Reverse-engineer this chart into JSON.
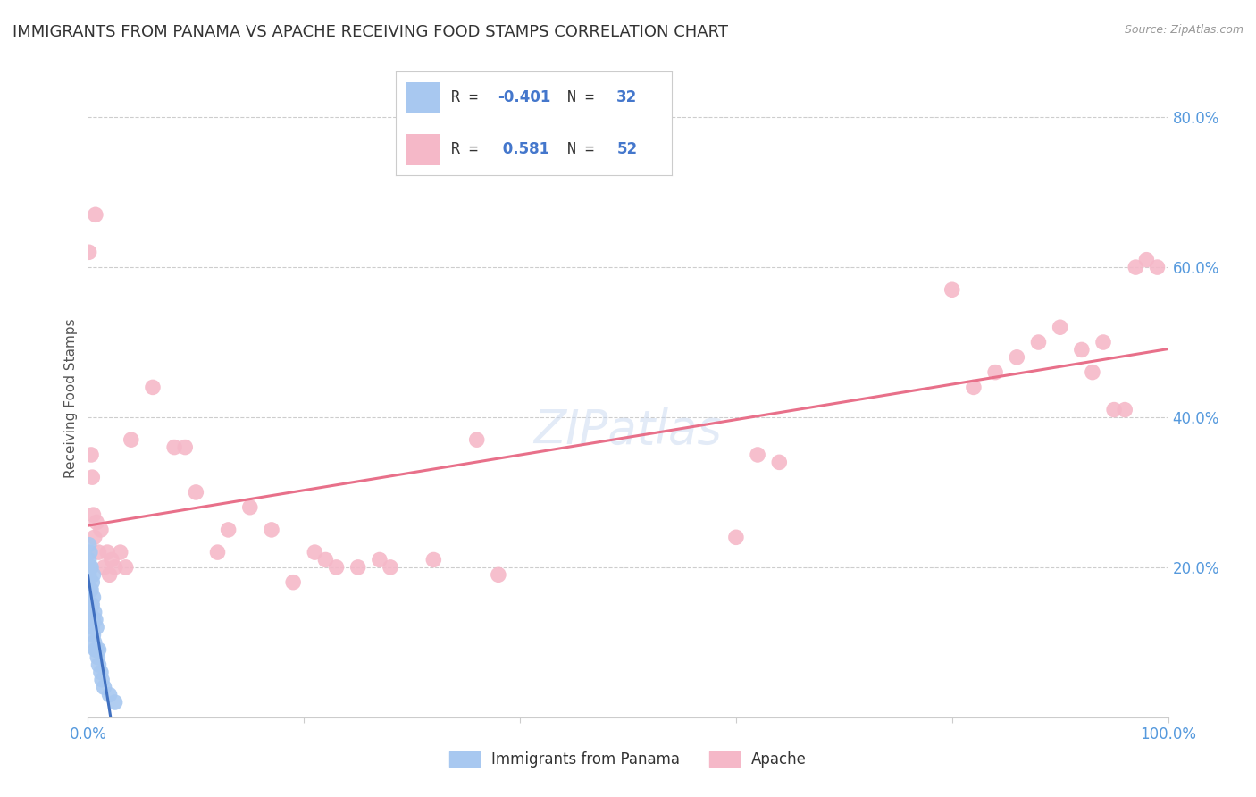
{
  "title": "IMMIGRANTS FROM PANAMA VS APACHE RECEIVING FOOD STAMPS CORRELATION CHART",
  "source": "Source: ZipAtlas.com",
  "ylabel": "Receiving Food Stamps",
  "xlim": [
    0.0,
    1.0
  ],
  "ylim": [
    0.0,
    0.85
  ],
  "xticks": [
    0.0,
    0.2,
    0.4,
    0.6,
    0.8,
    1.0
  ],
  "xticklabels": [
    "0.0%",
    "",
    "",
    "",
    "",
    "100.0%"
  ],
  "yticks": [
    0.2,
    0.4,
    0.6,
    0.8
  ],
  "yticklabels": [
    "20.0%",
    "40.0%",
    "60.0%",
    "80.0%"
  ],
  "blue_R": -0.401,
  "blue_N": 32,
  "pink_R": 0.581,
  "pink_N": 52,
  "blue_color": "#A8C8F0",
  "pink_color": "#F5B8C8",
  "blue_line_color": "#4070C0",
  "pink_line_color": "#E8708A",
  "background_color": "#FFFFFF",
  "grid_color": "#C8C8C8",
  "blue_x": [
    0.001,
    0.001,
    0.001,
    0.002,
    0.002,
    0.002,
    0.002,
    0.003,
    0.003,
    0.003,
    0.003,
    0.004,
    0.004,
    0.004,
    0.005,
    0.005,
    0.005,
    0.005,
    0.006,
    0.006,
    0.007,
    0.007,
    0.008,
    0.008,
    0.009,
    0.01,
    0.01,
    0.012,
    0.013,
    0.015,
    0.02,
    0.025
  ],
  "blue_y": [
    0.19,
    0.21,
    0.23,
    0.14,
    0.17,
    0.2,
    0.22,
    0.13,
    0.15,
    0.17,
    0.2,
    0.12,
    0.15,
    0.18,
    0.11,
    0.13,
    0.16,
    0.19,
    0.1,
    0.14,
    0.09,
    0.13,
    0.09,
    0.12,
    0.08,
    0.07,
    0.09,
    0.06,
    0.05,
    0.04,
    0.03,
    0.02
  ],
  "pink_x": [
    0.001,
    0.003,
    0.004,
    0.005,
    0.006,
    0.007,
    0.008,
    0.01,
    0.012,
    0.015,
    0.018,
    0.02,
    0.022,
    0.025,
    0.03,
    0.035,
    0.04,
    0.06,
    0.08,
    0.09,
    0.1,
    0.12,
    0.13,
    0.15,
    0.17,
    0.19,
    0.21,
    0.22,
    0.23,
    0.25,
    0.27,
    0.28,
    0.32,
    0.36,
    0.38,
    0.6,
    0.62,
    0.64,
    0.8,
    0.82,
    0.84,
    0.86,
    0.88,
    0.9,
    0.92,
    0.93,
    0.94,
    0.95,
    0.96,
    0.97,
    0.98,
    0.99
  ],
  "pink_y": [
    0.62,
    0.35,
    0.32,
    0.27,
    0.24,
    0.67,
    0.26,
    0.22,
    0.25,
    0.2,
    0.22,
    0.19,
    0.21,
    0.2,
    0.22,
    0.2,
    0.37,
    0.44,
    0.36,
    0.36,
    0.3,
    0.22,
    0.25,
    0.28,
    0.25,
    0.18,
    0.22,
    0.21,
    0.2,
    0.2,
    0.21,
    0.2,
    0.21,
    0.37,
    0.19,
    0.24,
    0.35,
    0.34,
    0.57,
    0.44,
    0.46,
    0.48,
    0.5,
    0.52,
    0.49,
    0.46,
    0.5,
    0.41,
    0.41,
    0.6,
    0.61,
    0.6
  ],
  "legend_label_blue": "Immigrants from Panama",
  "legend_label_pink": "Apache",
  "title_fontsize": 13,
  "axis_label_fontsize": 11,
  "tick_fontsize": 12
}
